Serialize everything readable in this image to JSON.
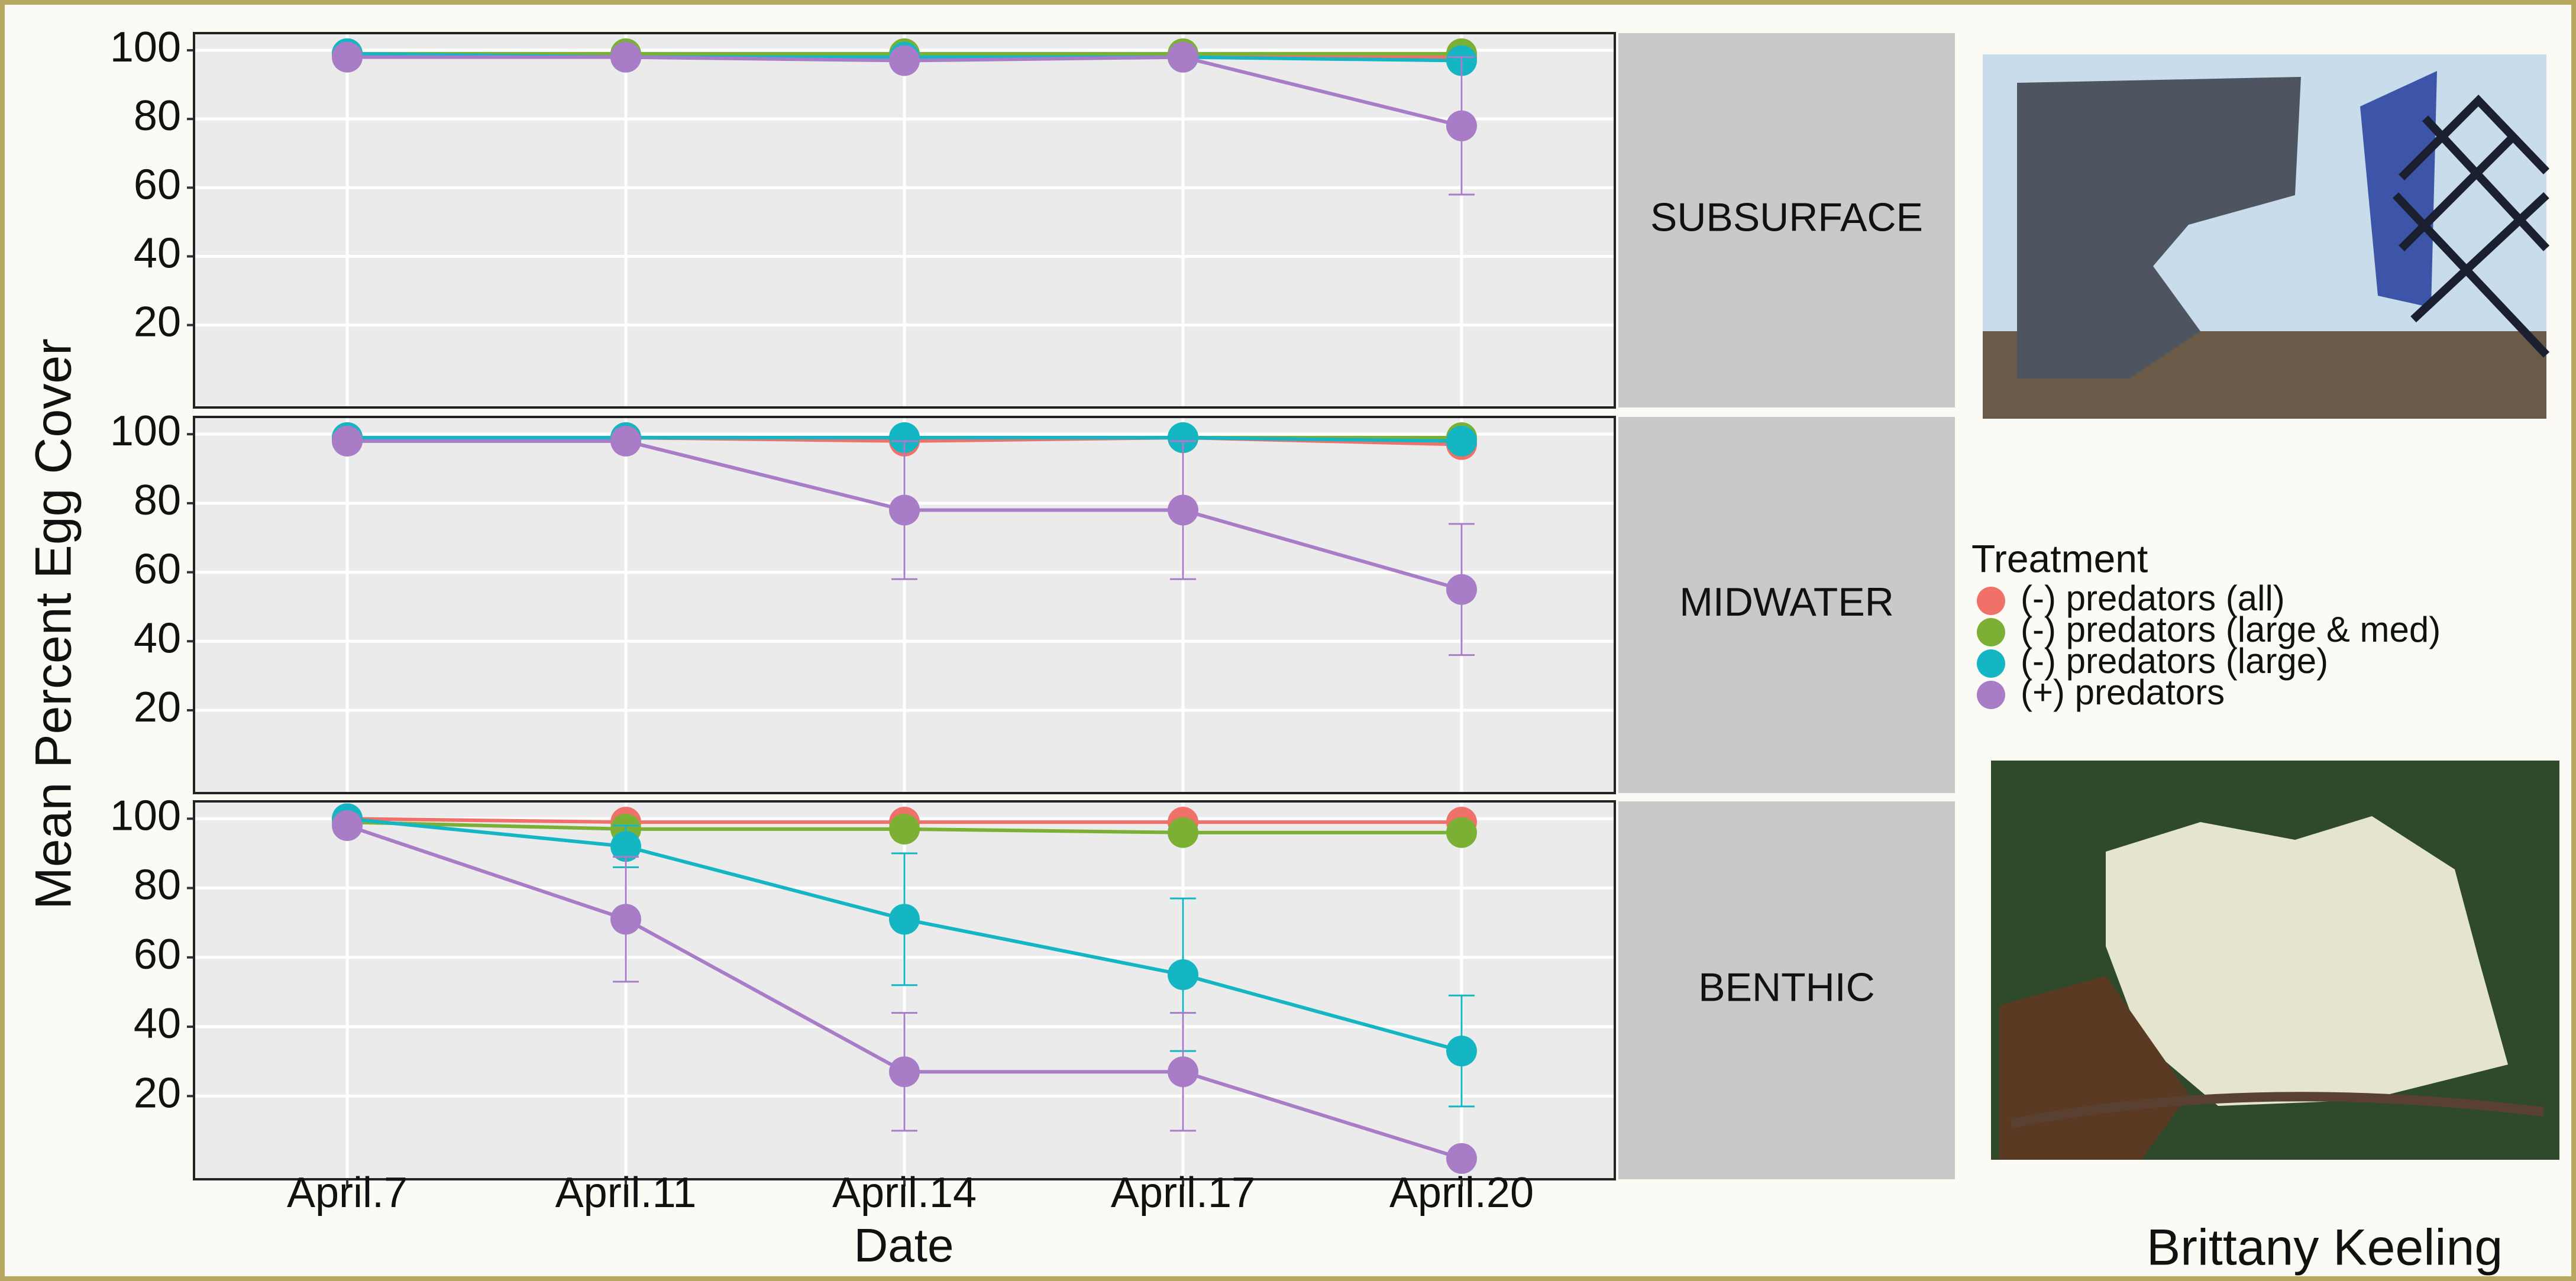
{
  "chart_data": {
    "type": "line",
    "x_label": "Date",
    "y_label": "Mean Percent Egg Cover",
    "legend_title": "Treatment",
    "categories": [
      "April.7",
      "April.11",
      "April.14",
      "April.17",
      "April.20"
    ],
    "ylim": [
      -4,
      105
    ],
    "yticks": [
      20,
      40,
      60,
      80,
      100
    ],
    "grid": true,
    "series": [
      {
        "name": "(-) predators (all)",
        "color": "#f0706a"
      },
      {
        "name": "(-) predators (large & med)",
        "color": "#7cb034"
      },
      {
        "name": "(-) predators (large)",
        "color": "#14b6c4"
      },
      {
        "name": "(+) predators",
        "color": "#a97cc8"
      }
    ],
    "facets": [
      {
        "label": "SUBSURFACE",
        "series": [
          {
            "values": [
              99,
              98,
              98,
              98,
              98
            ],
            "errors": [
              0,
              0,
              0,
              0,
              0
            ]
          },
          {
            "values": [
              99,
              99,
              99,
              99,
              99
            ],
            "errors": [
              0,
              0,
              0,
              0,
              0
            ]
          },
          {
            "values": [
              99,
              98,
              98,
              98,
              97
            ],
            "errors": [
              0,
              0,
              0,
              0,
              0
            ]
          },
          {
            "values": [
              98,
              98,
              97,
              98,
              78
            ],
            "errors": [
              0,
              0,
              0,
              0,
              20
            ]
          }
        ]
      },
      {
        "label": "MIDWATER",
        "series": [
          {
            "values": [
              99,
              99,
              98,
              99,
              97
            ],
            "errors": [
              0,
              0,
              0,
              0,
              0
            ]
          },
          {
            "values": [
              99,
              99,
              99,
              99,
              99
            ],
            "errors": [
              0,
              0,
              0,
              0,
              0
            ]
          },
          {
            "values": [
              99,
              99,
              99,
              99,
              98
            ],
            "errors": [
              0,
              0,
              0,
              0,
              0
            ]
          },
          {
            "values": [
              98,
              98,
              78,
              78,
              55
            ],
            "errors": [
              0,
              0,
              20,
              20,
              19
            ]
          }
        ]
      },
      {
        "label": "BENTHIC",
        "series": [
          {
            "values": [
              100,
              99,
              99,
              99,
              99
            ],
            "errors": [
              0,
              0,
              0,
              0,
              0
            ]
          },
          {
            "values": [
              99,
              97,
              97,
              96,
              96
            ],
            "errors": [
              0,
              0,
              0,
              0,
              0
            ]
          },
          {
            "values": [
              100,
              92,
              71,
              55,
              33
            ],
            "errors": [
              0,
              6,
              19,
              22,
              16
            ]
          },
          {
            "values": [
              98,
              71,
              27,
              27,
              2
            ],
            "errors": [
              0,
              18,
              17,
              17,
              0
            ]
          }
        ]
      }
    ]
  },
  "credit": "Brittany Keeling"
}
